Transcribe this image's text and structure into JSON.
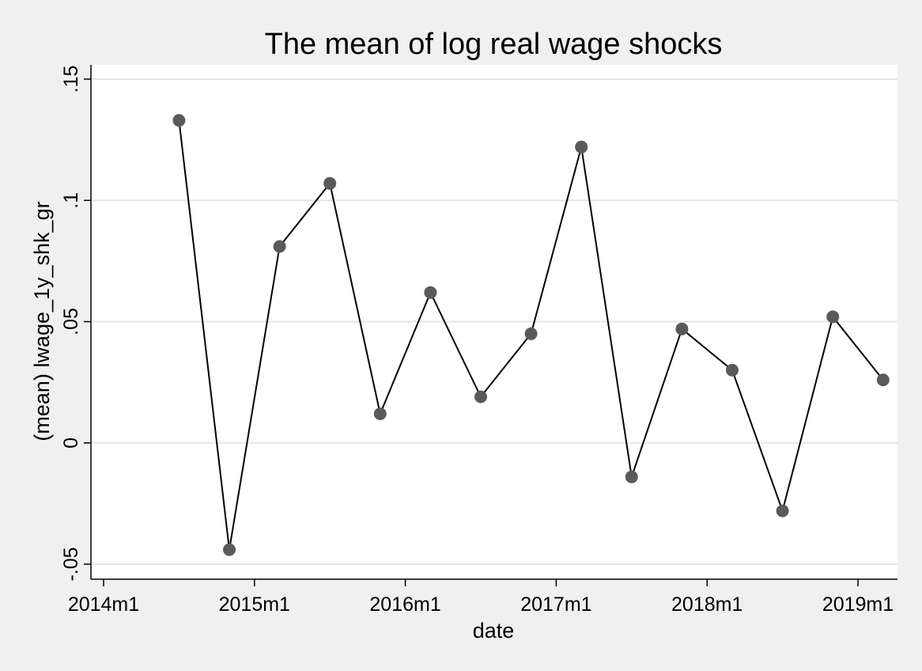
{
  "chart_data": {
    "type": "line",
    "title": "The mean of log real wage shocks",
    "xlabel": "date",
    "ylabel": "(mean) lwage_1y_shk_gr",
    "xlim": [
      "2014m1",
      "2019m3"
    ],
    "ylim": [
      -0.05,
      0.15
    ],
    "x_ticks": [
      "2014m1",
      "2015m1",
      "2016m1",
      "2017m1",
      "2018m1",
      "2019m1"
    ],
    "y_ticks": [
      {
        "value": -0.05,
        "label": "-.05"
      },
      {
        "value": 0,
        "label": "0"
      },
      {
        "value": 0.05,
        "label": ".05"
      },
      {
        "value": 0.1,
        "label": ".1"
      },
      {
        "value": 0.15,
        "label": ".15"
      }
    ],
    "grid": "horizontal",
    "marker": "circle",
    "colors": {
      "background": "#f0f0f0",
      "plot_background": "#ffffff",
      "line": "#000000",
      "marker": "#5a5a5a",
      "grid": "#e6e6e6",
      "axis": "#000000"
    },
    "series": [
      {
        "x": [
          "2014m7",
          "2014m11",
          "2015m3",
          "2015m7",
          "2015m11",
          "2016m3",
          "2016m7",
          "2016m11",
          "2017m3",
          "2017m7",
          "2017m11",
          "2018m3",
          "2018m7",
          "2018m11",
          "2019m3"
        ],
        "values": [
          0.133,
          -0.044,
          0.081,
          0.107,
          0.012,
          0.062,
          0.019,
          0.045,
          0.122,
          -0.014,
          0.047,
          0.03,
          -0.028,
          0.052,
          0.026
        ]
      }
    ]
  }
}
